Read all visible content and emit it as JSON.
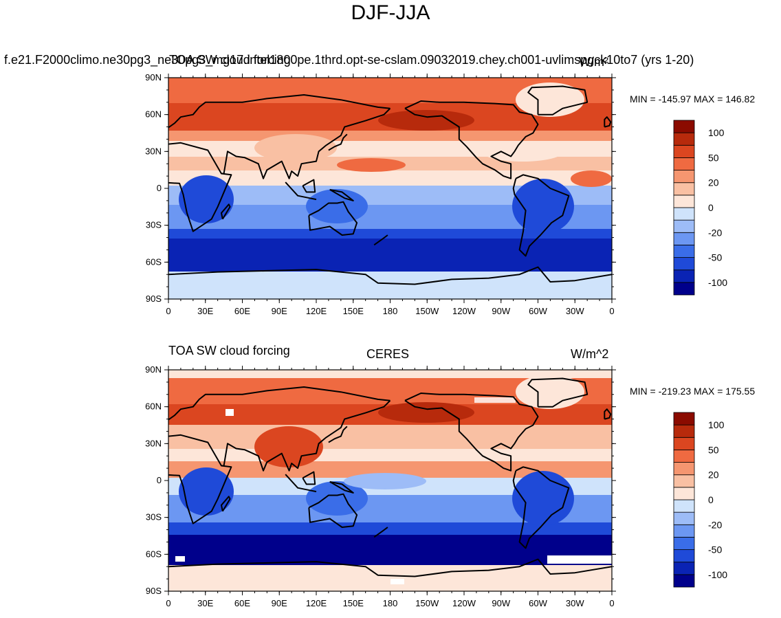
{
  "figure_title": "DJF-JJA",
  "panels": [
    {
      "left_label": "f.e21.F2000climo.ne30pg3_ne30pg3_mg17.intel1800pe.1thrd.opt-se-cslam.09032019.chey.ch001-uvlimspgck10to7 (yrs 1-20)",
      "subtitle": "TOA SW cloud forcing",
      "units": "W/m²",
      "stats": "MIN = -145.97 MAX = 146.82",
      "colorbar": {
        "colors": [
          "#00008b",
          "#0a23b4",
          "#1f4ad8",
          "#3a6de8",
          "#6c97f2",
          "#9dbcf7",
          "#cfe3fb",
          "#fde6d9",
          "#f9c0a3",
          "#f59670",
          "#ef6a41",
          "#db4620",
          "#b72a0c",
          "#8b0b00"
        ],
        "labels": [
          "-100",
          "-50",
          "-20",
          "0",
          "20",
          "50",
          "100"
        ]
      }
    },
    {
      "left_label": "TOA SW cloud forcing",
      "center_label": "CERES",
      "units": "W/m^2",
      "stats": "MIN = -219.23 MAX = 175.55",
      "colorbar": {
        "colors": [
          "#00008b",
          "#0a23b4",
          "#1f4ad8",
          "#3a6de8",
          "#6c97f2",
          "#9dbcf7",
          "#cfe3fb",
          "#fde6d9",
          "#f9c0a3",
          "#f59670",
          "#ef6a41",
          "#db4620",
          "#b72a0c",
          "#8b0b00"
        ],
        "labels": [
          "-100",
          "-50",
          "-20",
          "0",
          "20",
          "50",
          "100"
        ]
      }
    }
  ],
  "axes": {
    "lat_labels": [
      "90N",
      "60N",
      "30N",
      "0",
      "30S",
      "60S",
      "90S"
    ],
    "lon_labels": [
      "0",
      "30E",
      "60E",
      "90E",
      "120E",
      "150E",
      "180",
      "150W",
      "120W",
      "90W",
      "60W",
      "30W",
      "0"
    ]
  }
}
